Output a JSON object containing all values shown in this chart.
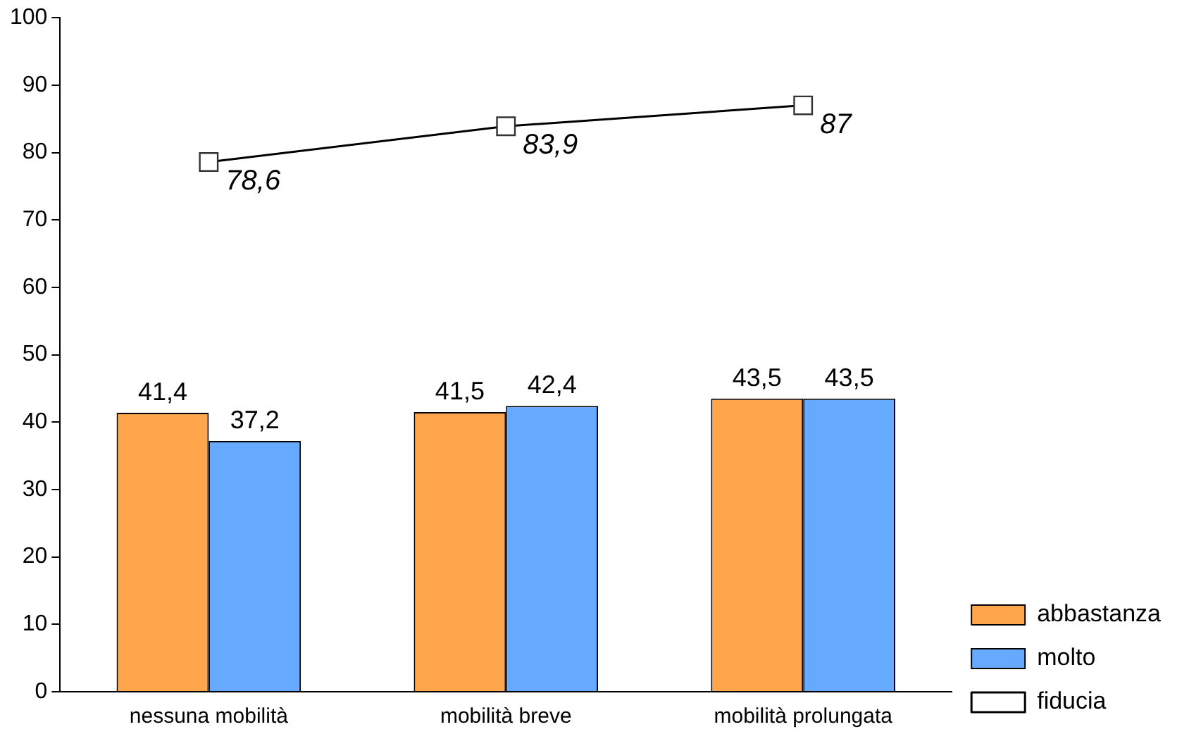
{
  "chart_data": {
    "type": "bar",
    "categories": [
      "nessuna mobilità",
      "mobilità breve",
      "mobilità prolungata"
    ],
    "series": [
      {
        "name": "abbastanza",
        "color": "#ffa64d",
        "values": [
          41.4,
          41.5,
          43.5
        ],
        "value_labels": [
          "41,4",
          "41,5",
          "43,5"
        ]
      },
      {
        "name": "molto",
        "color": "#66aaff",
        "values": [
          37.2,
          42.4,
          43.5
        ],
        "value_labels": [
          "37,2",
          "42,4",
          "43,5"
        ]
      },
      {
        "name": "fiducia",
        "type": "line",
        "color": "#000000",
        "values": [
          78.6,
          83.9,
          87
        ],
        "value_labels": [
          "78,6",
          "83,9",
          "87"
        ]
      }
    ],
    "ylim": [
      0,
      100
    ],
    "yticks": [
      0,
      10,
      20,
      30,
      40,
      50,
      60,
      70,
      80,
      90,
      100
    ],
    "grid": false,
    "legend": "bottom right",
    "marker": "square",
    "line_style": "solid"
  }
}
